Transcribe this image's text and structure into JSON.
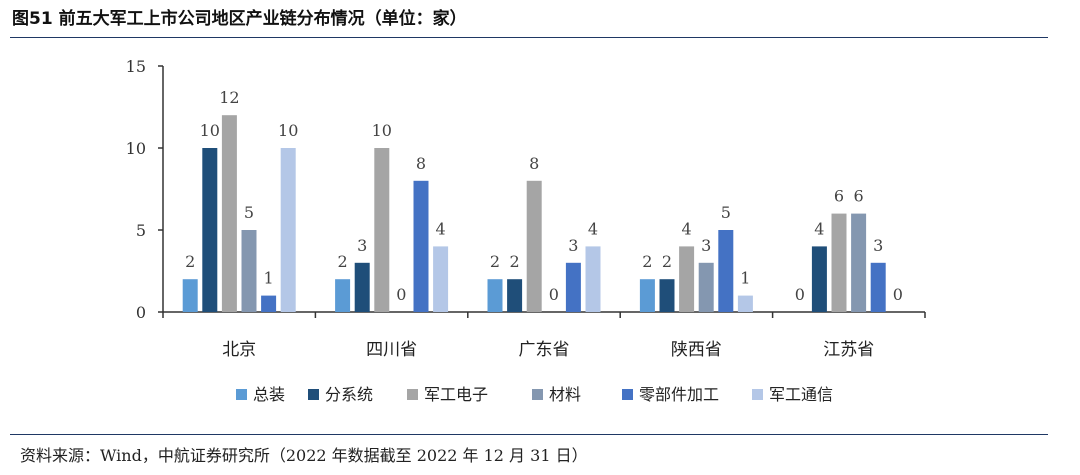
{
  "header": {
    "title": "图51 前五大军工上市公司地区产业链分布情况（单位：家）"
  },
  "footer": {
    "source": "资料来源：Wind，中航证券研究所（2022 年数据截至 2022 年 12 月 31 日）"
  },
  "chart_data": {
    "type": "bar",
    "title": "图51 前五大军工上市公司地区产业链分布情况（单位：家）",
    "xlabel": "",
    "ylabel": "",
    "ylim": [
      0,
      15
    ],
    "yticks": [
      0,
      5,
      10,
      15
    ],
    "legend_position": "bottom",
    "categories": [
      "北京",
      "四川省",
      "广东省",
      "陕西省",
      "江苏省"
    ],
    "series": [
      {
        "name": "总装",
        "color": "#5b9bd5",
        "values": [
          2,
          2,
          2,
          2,
          0
        ]
      },
      {
        "name": "分系统",
        "color": "#1f4e79",
        "values": [
          10,
          3,
          2,
          2,
          4
        ]
      },
      {
        "name": "军工电子",
        "color": "#a5a5a5",
        "values": [
          12,
          10,
          8,
          4,
          6
        ]
      },
      {
        "name": "材料",
        "color": "#8497b0",
        "values": [
          5,
          0,
          0,
          3,
          6
        ]
      },
      {
        "name": "零部件加工",
        "color": "#4472c4",
        "values": [
          1,
          8,
          3,
          5,
          3
        ]
      },
      {
        "name": "军工通信",
        "color": "#b4c7e7",
        "values": [
          10,
          4,
          4,
          1,
          0
        ]
      }
    ]
  }
}
